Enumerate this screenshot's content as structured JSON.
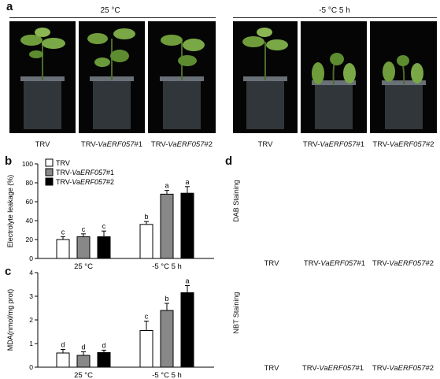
{
  "panel_a": {
    "label": "a",
    "groups": [
      {
        "condition": "25 °C",
        "captions": [
          {
            "pre": "TRV",
            "it": "",
            "post": ""
          },
          {
            "pre": "TRV-",
            "it": "VaERF057",
            "post": "#1"
          },
          {
            "pre": "TRV-",
            "it": "VaERF057",
            "post": "#2"
          }
        ]
      },
      {
        "condition": "-5 °C 5 h",
        "captions": [
          {
            "pre": "TRV",
            "it": "",
            "post": ""
          },
          {
            "pre": "TRV-",
            "it": "VaERF057",
            "post": "#1"
          },
          {
            "pre": "TRV-",
            "it": "VaERF057",
            "post": "#2"
          }
        ]
      }
    ]
  },
  "panel_b_label": "b",
  "panel_c_label": "c",
  "panel_d": {
    "label": "d",
    "row_labels": [
      "DAB Staining",
      "NBT Staining"
    ],
    "captions": [
      {
        "pre": "TRV",
        "it": "",
        "post": ""
      },
      {
        "pre": "TRV-",
        "it": "VaERF057",
        "post": "#1"
      },
      {
        "pre": "TRV-",
        "it": "VaERF057",
        "post": "#2"
      }
    ],
    "colors": {
      "dab": [
        "#5a2a1f",
        "#2b2420",
        "#2a2522"
      ],
      "nbt": [
        "#c9c6b8",
        "#4a4a58",
        "#2a2a30"
      ]
    }
  },
  "chart_data": [
    {
      "type": "bar",
      "panel": "b",
      "ylabel": "Electrolyte leakage (%)",
      "categories": [
        "25 °C",
        "-5 °C 5 h"
      ],
      "ylim": [
        0,
        100
      ],
      "yticks": [
        0,
        20,
        40,
        60,
        80,
        100
      ],
      "legend": "top-left",
      "series": [
        {
          "name": "TRV",
          "color": "#ffffff",
          "values": [
            20,
            36
          ],
          "errors": [
            3,
            3
          ],
          "letters": [
            "c",
            "b"
          ]
        },
        {
          "name": "TRV-VaERF057#1",
          "color": "#888888",
          "values": [
            23,
            68
          ],
          "errors": [
            3,
            4
          ],
          "letters": [
            "c",
            "a"
          ]
        },
        {
          "name": "TRV-VaERF057#2",
          "color": "#000000",
          "values": [
            23,
            69
          ],
          "errors": [
            6,
            7
          ],
          "letters": [
            "c",
            "a"
          ]
        }
      ],
      "legend_labels": [
        {
          "pre": "TRV",
          "it": "",
          "post": ""
        },
        {
          "pre": "TRV-",
          "it": "VaERF057",
          "post": "#1"
        },
        {
          "pre": "TRV-",
          "it": "VaERF057",
          "post": "#2"
        }
      ]
    },
    {
      "type": "bar",
      "panel": "c",
      "ylabel": "MDA(nmol/mg prot)",
      "categories": [
        "25 °C",
        "-5 °C 5 h"
      ],
      "ylim": [
        0,
        4
      ],
      "yticks": [
        0,
        1,
        2,
        3,
        4
      ],
      "series": [
        {
          "name": "TRV",
          "color": "#ffffff",
          "values": [
            0.6,
            1.55
          ],
          "errors": [
            0.15,
            0.4
          ],
          "letters": [
            "d",
            "c"
          ]
        },
        {
          "name": "TRV-VaERF057#1",
          "color": "#888888",
          "values": [
            0.5,
            2.4
          ],
          "errors": [
            0.15,
            0.3
          ],
          "letters": [
            "d",
            "b"
          ]
        },
        {
          "name": "TRV-VaERF057#2",
          "color": "#000000",
          "values": [
            0.62,
            3.15
          ],
          "errors": [
            0.1,
            0.3
          ],
          "letters": [
            "d",
            "a"
          ]
        }
      ]
    }
  ]
}
